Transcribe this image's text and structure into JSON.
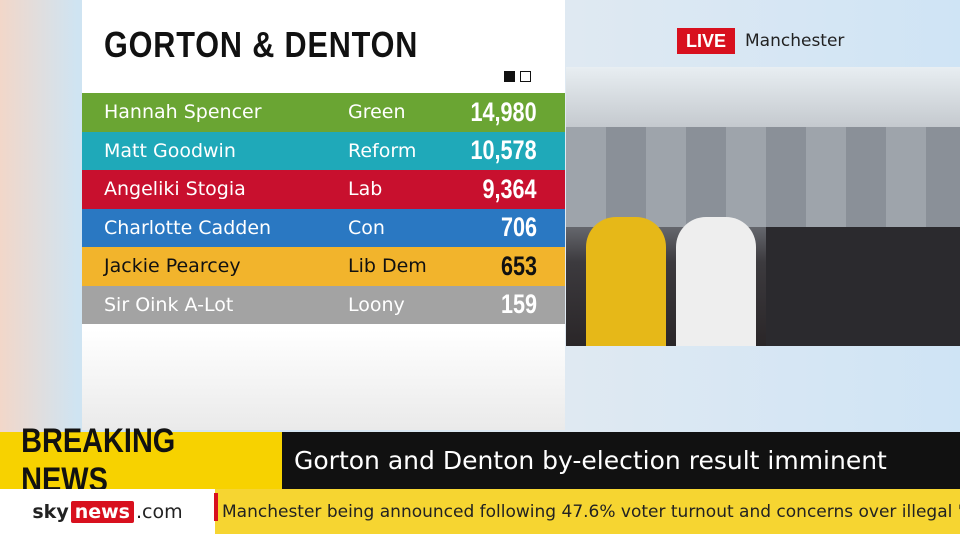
{
  "results": {
    "title": "GORTON & DENTON",
    "rows": [
      {
        "name": "Hannah Spencer",
        "party": "Green",
        "votes": "14,980"
      },
      {
        "name": "Matt Goodwin",
        "party": "Reform",
        "votes": "10,578"
      },
      {
        "name": "Angeliki Stogia",
        "party": "Lab",
        "votes": "9,364"
      },
      {
        "name": "Charlotte Cadden",
        "party": "Con",
        "votes": "706"
      },
      {
        "name": "Jackie Pearcey",
        "party": "Lib Dem",
        "votes": "653"
      },
      {
        "name": "Sir Oink A-Lot",
        "party": "Loony",
        "votes": "159"
      }
    ]
  },
  "live": {
    "badge": "LIVE",
    "location": "Manchester"
  },
  "breaking": {
    "label": "BREAKING NEWS",
    "headline": "Gorton and Denton by-election result imminent"
  },
  "ticker": {
    "logo_sky": "sky",
    "logo_news": "news",
    "logo_com": ".com",
    "text": "Manchester being announced following 47.6% voter turnout and concerns over illegal \"family voting\""
  }
}
